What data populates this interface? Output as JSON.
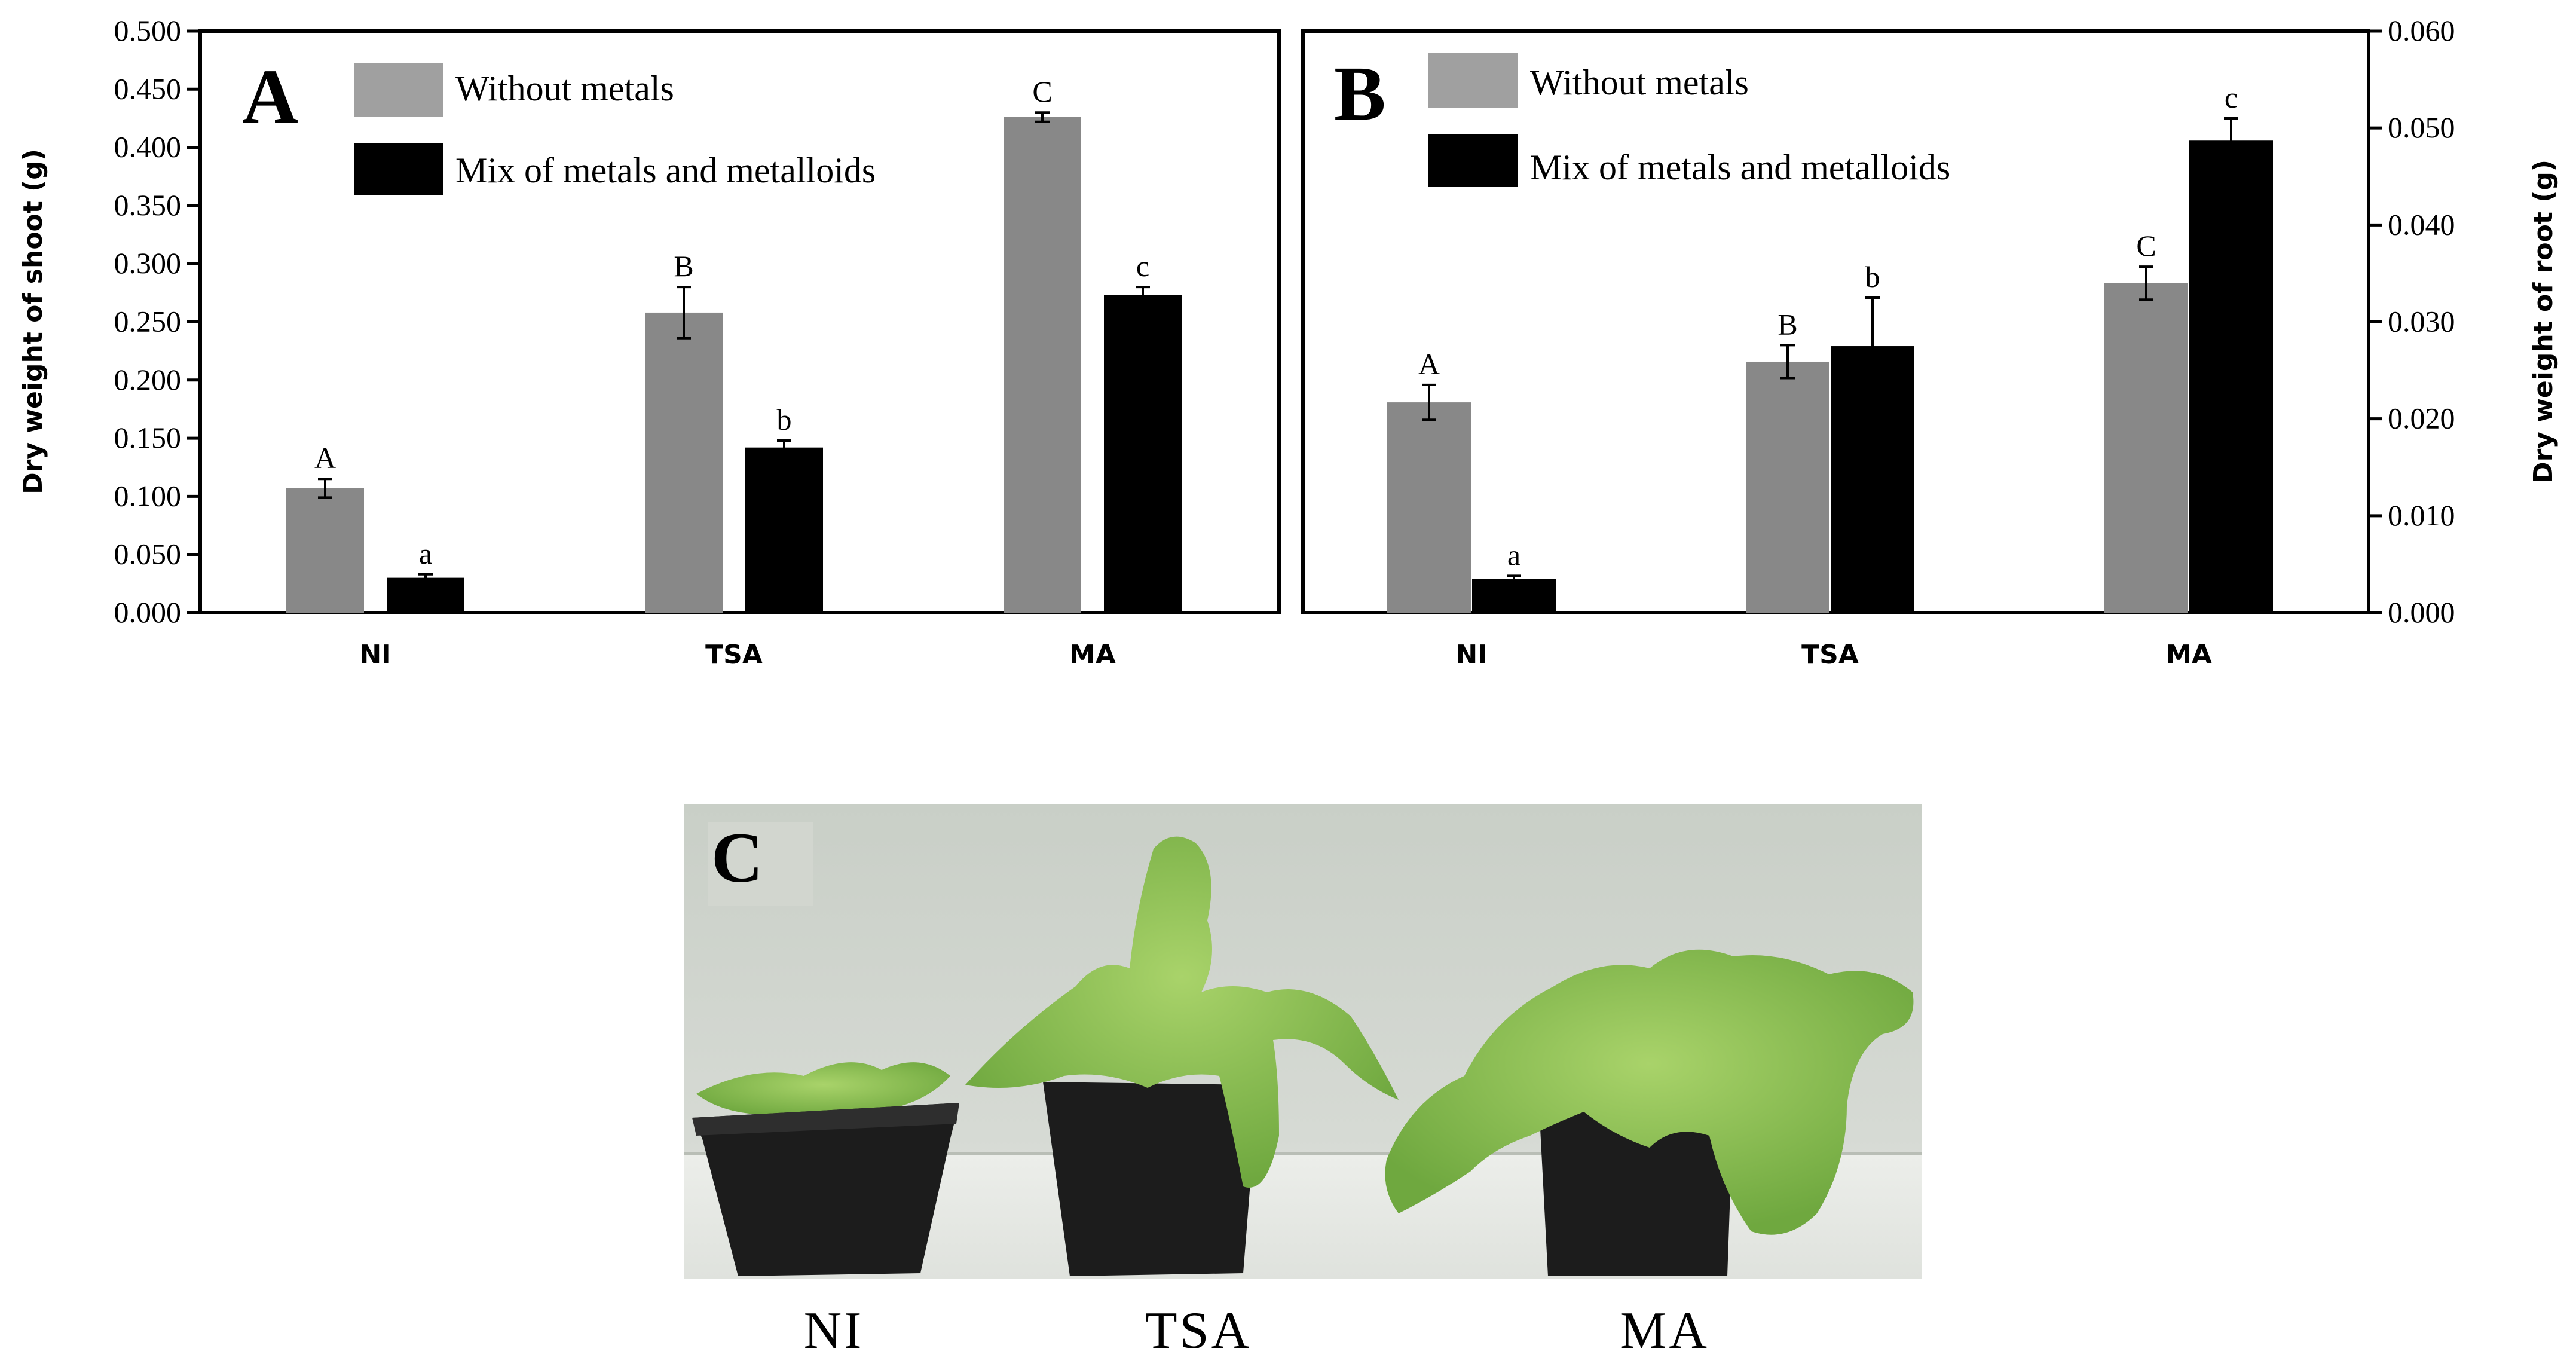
{
  "colors": {
    "without": "#888888",
    "mix": "#000000",
    "legend_without": "#a0a0a0"
  },
  "chart_data": [
    {
      "panel": "A",
      "type": "bar",
      "categories": [
        "NI",
        "TSA",
        "MA"
      ],
      "ylabel": "Dry weight of shoot (g)",
      "ylim": [
        0,
        0.5
      ],
      "yticks": [
        "0.000",
        "0.050",
        "0.100",
        "0.150",
        "0.200",
        "0.250",
        "0.300",
        "0.350",
        "0.400",
        "0.450",
        "0.500"
      ],
      "legend_position": "top-left",
      "series": [
        {
          "name": "Without metals",
          "values": [
            0.107,
            0.258,
            0.426
          ],
          "errors": [
            0.008,
            0.022,
            0.004
          ],
          "letters": [
            "A",
            "B",
            "C"
          ]
        },
        {
          "name": "Mix of metals and metalloids",
          "values": [
            0.03,
            0.142,
            0.273
          ],
          "errors": [
            0.003,
            0.006,
            0.007
          ],
          "letters": [
            "a",
            "b",
            "c"
          ]
        }
      ]
    },
    {
      "panel": "B",
      "type": "bar",
      "categories": [
        "NI",
        "TSA",
        "MA"
      ],
      "ylabel": "Dry weight of root (g)",
      "ylim": [
        0,
        0.06
      ],
      "yticks": [
        "0.000",
        "0.010",
        "0.020",
        "0.030",
        "0.040",
        "0.050",
        "0.060"
      ],
      "yaxis_side": "right",
      "legend_position": "top-left",
      "series": [
        {
          "name": "Without metals",
          "values": [
            0.0217,
            0.0259,
            0.034
          ],
          "errors": [
            0.0018,
            0.0017,
            0.0017
          ],
          "letters": [
            "A",
            "B",
            "C"
          ]
        },
        {
          "name": "Mix of metals and metalloids",
          "values": [
            0.0035,
            0.0275,
            0.0487
          ],
          "errors": [
            0.0003,
            0.005,
            0.0023
          ],
          "letters": [
            "a",
            "b",
            "c"
          ]
        }
      ]
    }
  ],
  "photo": {
    "panel": "C",
    "labels": [
      "NI",
      "TSA",
      "MA"
    ]
  }
}
